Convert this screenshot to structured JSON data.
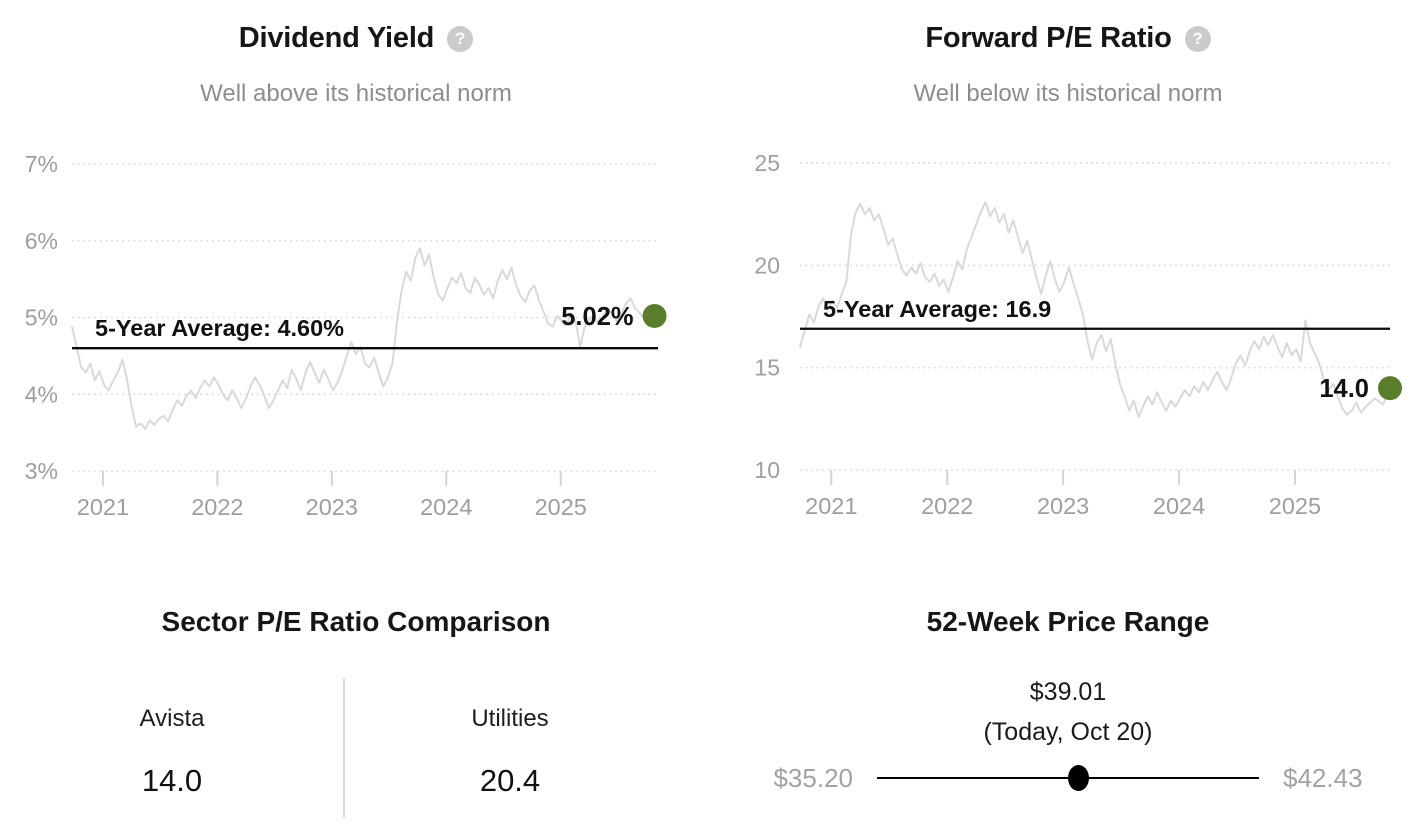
{
  "colors": {
    "title_text": "#161616",
    "subtitle_text": "#8d8d8d",
    "axis_label": "#9e9e9e",
    "series_line": "#d9d9d9",
    "gridline": "#d6d6d6",
    "tick_mark": "#d4d4d4",
    "average_line": "#0a0a0a",
    "current_dot_green": "#5a7d2c",
    "range_label_gray": "#a2a2a2",
    "divider_gray": "#d9d9d9",
    "help_icon_bg": "#cbcbcb",
    "slider_black": "#000000"
  },
  "icons": {
    "help_glyph": "?"
  },
  "chart_data": [
    {
      "type": "line",
      "title": "Dividend Yield",
      "subtitle": "Well above its historical norm",
      "help_icon": "question-mark-icon",
      "xlabel": "",
      "ylabel": "Dividend Yield (%)",
      "xlim": [
        2020.73,
        2025.85
      ],
      "ylim": [
        3,
        7
      ],
      "grid": "dotted-horizontal",
      "legend": "none",
      "y_ticks": [
        {
          "value": 7,
          "label": "7%"
        },
        {
          "value": 6,
          "label": "6%"
        },
        {
          "value": 5,
          "label": "5%"
        },
        {
          "value": 4,
          "label": "4%"
        },
        {
          "value": 3,
          "label": "3%"
        }
      ],
      "x_ticks": [
        {
          "value": 2021,
          "label": "2021"
        },
        {
          "value": 2022,
          "label": "2022"
        },
        {
          "value": 2023,
          "label": "2023"
        },
        {
          "value": 2024,
          "label": "2024"
        },
        {
          "value": 2025,
          "label": "2025"
        }
      ],
      "average": {
        "value": 4.6,
        "label": "5-Year Average: 4.60%"
      },
      "current": {
        "value": 5.02,
        "label": "5.02%"
      },
      "series": [
        [
          2020.73,
          4.88
        ],
        [
          2020.77,
          4.62
        ],
        [
          2020.81,
          4.35
        ],
        [
          2020.85,
          4.28
        ],
        [
          2020.89,
          4.4
        ],
        [
          2020.93,
          4.18
        ],
        [
          2020.97,
          4.3
        ],
        [
          2021.01,
          4.12
        ],
        [
          2021.05,
          4.05
        ],
        [
          2021.09,
          4.18
        ],
        [
          2021.13,
          4.28
        ],
        [
          2021.17,
          4.45
        ],
        [
          2021.21,
          4.2
        ],
        [
          2021.25,
          3.85
        ],
        [
          2021.29,
          3.58
        ],
        [
          2021.33,
          3.62
        ],
        [
          2021.37,
          3.55
        ],
        [
          2021.41,
          3.66
        ],
        [
          2021.45,
          3.6
        ],
        [
          2021.49,
          3.68
        ],
        [
          2021.53,
          3.72
        ],
        [
          2021.57,
          3.65
        ],
        [
          2021.61,
          3.8
        ],
        [
          2021.65,
          3.92
        ],
        [
          2021.69,
          3.85
        ],
        [
          2021.73,
          3.98
        ],
        [
          2021.77,
          4.05
        ],
        [
          2021.81,
          3.95
        ],
        [
          2021.85,
          4.08
        ],
        [
          2021.89,
          4.18
        ],
        [
          2021.93,
          4.1
        ],
        [
          2021.97,
          4.22
        ],
        [
          2022.01,
          4.12
        ],
        [
          2022.05,
          4.0
        ],
        [
          2022.09,
          3.92
        ],
        [
          2022.13,
          4.05
        ],
        [
          2022.17,
          3.95
        ],
        [
          2022.21,
          3.82
        ],
        [
          2022.25,
          3.95
        ],
        [
          2022.29,
          4.1
        ],
        [
          2022.33,
          4.22
        ],
        [
          2022.37,
          4.12
        ],
        [
          2022.41,
          3.98
        ],
        [
          2022.45,
          3.82
        ],
        [
          2022.49,
          3.92
        ],
        [
          2022.53,
          4.05
        ],
        [
          2022.57,
          4.18
        ],
        [
          2022.61,
          4.08
        ],
        [
          2022.65,
          4.32
        ],
        [
          2022.69,
          4.2
        ],
        [
          2022.73,
          4.05
        ],
        [
          2022.77,
          4.28
        ],
        [
          2022.81,
          4.42
        ],
        [
          2022.85,
          4.28
        ],
        [
          2022.89,
          4.15
        ],
        [
          2022.93,
          4.32
        ],
        [
          2022.97,
          4.2
        ],
        [
          2023.01,
          4.05
        ],
        [
          2023.05,
          4.15
        ],
        [
          2023.09,
          4.3
        ],
        [
          2023.13,
          4.5
        ],
        [
          2023.17,
          4.68
        ],
        [
          2023.21,
          4.52
        ],
        [
          2023.25,
          4.62
        ],
        [
          2023.29,
          4.4
        ],
        [
          2023.33,
          4.35
        ],
        [
          2023.37,
          4.48
        ],
        [
          2023.41,
          4.28
        ],
        [
          2023.45,
          4.1
        ],
        [
          2023.49,
          4.22
        ],
        [
          2023.53,
          4.4
        ],
        [
          2023.57,
          4.95
        ],
        [
          2023.61,
          5.35
        ],
        [
          2023.65,
          5.6
        ],
        [
          2023.69,
          5.48
        ],
        [
          2023.73,
          5.78
        ],
        [
          2023.77,
          5.9
        ],
        [
          2023.81,
          5.68
        ],
        [
          2023.85,
          5.82
        ],
        [
          2023.89,
          5.52
        ],
        [
          2023.93,
          5.3
        ],
        [
          2023.97,
          5.22
        ],
        [
          2024.01,
          5.38
        ],
        [
          2024.05,
          5.52
        ],
        [
          2024.09,
          5.45
        ],
        [
          2024.13,
          5.58
        ],
        [
          2024.17,
          5.38
        ],
        [
          2024.21,
          5.32
        ],
        [
          2024.25,
          5.52
        ],
        [
          2024.29,
          5.42
        ],
        [
          2024.33,
          5.3
        ],
        [
          2024.37,
          5.38
        ],
        [
          2024.41,
          5.25
        ],
        [
          2024.45,
          5.48
        ],
        [
          2024.49,
          5.62
        ],
        [
          2024.53,
          5.5
        ],
        [
          2024.57,
          5.65
        ],
        [
          2024.61,
          5.42
        ],
        [
          2024.65,
          5.28
        ],
        [
          2024.69,
          5.2
        ],
        [
          2024.73,
          5.35
        ],
        [
          2024.77,
          5.42
        ],
        [
          2024.81,
          5.22
        ],
        [
          2024.85,
          5.08
        ],
        [
          2024.89,
          4.92
        ],
        [
          2024.93,
          4.88
        ],
        [
          2024.97,
          5.02
        ],
        [
          2025.01,
          4.95
        ],
        [
          2025.05,
          4.9
        ],
        [
          2025.09,
          5.05
        ],
        [
          2025.13,
          4.95
        ],
        [
          2025.17,
          4.62
        ],
        [
          2025.21,
          4.88
        ],
        [
          2025.25,
          4.98
        ],
        [
          2025.29,
          5.02
        ],
        [
          2025.33,
          4.92
        ],
        [
          2025.37,
          5.02
        ],
        [
          2025.41,
          5.12
        ],
        [
          2025.45,
          5.05
        ],
        [
          2025.49,
          4.95
        ],
        [
          2025.53,
          5.05
        ],
        [
          2025.57,
          5.18
        ],
        [
          2025.61,
          5.25
        ],
        [
          2025.65,
          5.12
        ],
        [
          2025.69,
          5.06
        ],
        [
          2025.73,
          4.98
        ],
        [
          2025.78,
          5.1
        ],
        [
          2025.82,
          5.02
        ]
      ]
    },
    {
      "type": "line",
      "title": "Forward P/E Ratio",
      "subtitle": "Well below its historical norm",
      "help_icon": "question-mark-icon",
      "xlabel": "",
      "ylabel": "Forward P/E Ratio",
      "xlim": [
        2020.73,
        2025.82
      ],
      "ylim": [
        10,
        25
      ],
      "grid": "dotted-horizontal",
      "legend": "none",
      "y_ticks": [
        {
          "value": 25,
          "label": "25"
        },
        {
          "value": 20,
          "label": "20"
        },
        {
          "value": 15,
          "label": "15"
        },
        {
          "value": 10,
          "label": "10"
        }
      ],
      "x_ticks": [
        {
          "value": 2021,
          "label": "2021"
        },
        {
          "value": 2022,
          "label": "2022"
        },
        {
          "value": 2023,
          "label": "2023"
        },
        {
          "value": 2024,
          "label": "2024"
        },
        {
          "value": 2025,
          "label": "2025"
        }
      ],
      "average": {
        "value": 16.9,
        "label": "5-Year Average: 16.9"
      },
      "current": {
        "value": 14.0,
        "label": "14.0"
      },
      "series": [
        [
          2020.73,
          16.0
        ],
        [
          2020.77,
          16.8
        ],
        [
          2020.81,
          17.6
        ],
        [
          2020.85,
          17.2
        ],
        [
          2020.89,
          18.0
        ],
        [
          2020.93,
          18.4
        ],
        [
          2020.97,
          17.8
        ],
        [
          2021.01,
          18.3
        ],
        [
          2021.05,
          17.9
        ],
        [
          2021.09,
          18.6
        ],
        [
          2021.13,
          19.2
        ],
        [
          2021.17,
          21.5
        ],
        [
          2021.21,
          22.6
        ],
        [
          2021.25,
          23.0
        ],
        [
          2021.29,
          22.5
        ],
        [
          2021.33,
          22.8
        ],
        [
          2021.37,
          22.2
        ],
        [
          2021.41,
          22.5
        ],
        [
          2021.45,
          21.8
        ],
        [
          2021.49,
          21.0
        ],
        [
          2021.53,
          21.3
        ],
        [
          2021.57,
          20.5
        ],
        [
          2021.61,
          19.8
        ],
        [
          2021.65,
          19.5
        ],
        [
          2021.69,
          19.9
        ],
        [
          2021.73,
          19.6
        ],
        [
          2021.77,
          20.1
        ],
        [
          2021.81,
          19.4
        ],
        [
          2021.85,
          19.2
        ],
        [
          2021.89,
          19.6
        ],
        [
          2021.93,
          19.0
        ],
        [
          2021.97,
          19.3
        ],
        [
          2022.01,
          18.7
        ],
        [
          2022.05,
          19.4
        ],
        [
          2022.09,
          20.2
        ],
        [
          2022.13,
          19.8
        ],
        [
          2022.17,
          20.8
        ],
        [
          2022.21,
          21.4
        ],
        [
          2022.25,
          22.0
        ],
        [
          2022.29,
          22.6
        ],
        [
          2022.33,
          23.1
        ],
        [
          2022.37,
          22.4
        ],
        [
          2022.41,
          22.8
        ],
        [
          2022.45,
          22.1
        ],
        [
          2022.49,
          22.5
        ],
        [
          2022.53,
          21.6
        ],
        [
          2022.57,
          22.2
        ],
        [
          2022.61,
          21.4
        ],
        [
          2022.65,
          20.6
        ],
        [
          2022.69,
          21.2
        ],
        [
          2022.73,
          20.3
        ],
        [
          2022.77,
          19.4
        ],
        [
          2022.81,
          18.6
        ],
        [
          2022.85,
          19.5
        ],
        [
          2022.89,
          20.2
        ],
        [
          2022.93,
          19.3
        ],
        [
          2022.97,
          18.7
        ],
        [
          2023.01,
          19.2
        ],
        [
          2023.05,
          19.9
        ],
        [
          2023.09,
          19.1
        ],
        [
          2023.13,
          18.4
        ],
        [
          2023.17,
          17.6
        ],
        [
          2023.21,
          16.3
        ],
        [
          2023.25,
          15.4
        ],
        [
          2023.29,
          16.2
        ],
        [
          2023.33,
          16.6
        ],
        [
          2023.37,
          15.8
        ],
        [
          2023.41,
          16.4
        ],
        [
          2023.45,
          15.2
        ],
        [
          2023.49,
          14.2
        ],
        [
          2023.53,
          13.6
        ],
        [
          2023.57,
          12.9
        ],
        [
          2023.61,
          13.4
        ],
        [
          2023.65,
          12.6
        ],
        [
          2023.69,
          13.1
        ],
        [
          2023.73,
          13.6
        ],
        [
          2023.77,
          13.2
        ],
        [
          2023.81,
          13.8
        ],
        [
          2023.85,
          13.3
        ],
        [
          2023.89,
          12.9
        ],
        [
          2023.93,
          13.4
        ],
        [
          2023.97,
          13.1
        ],
        [
          2024.01,
          13.5
        ],
        [
          2024.05,
          13.9
        ],
        [
          2024.09,
          13.6
        ],
        [
          2024.13,
          14.1
        ],
        [
          2024.17,
          13.8
        ],
        [
          2024.21,
          14.3
        ],
        [
          2024.25,
          13.9
        ],
        [
          2024.29,
          14.4
        ],
        [
          2024.33,
          14.8
        ],
        [
          2024.37,
          14.3
        ],
        [
          2024.41,
          13.9
        ],
        [
          2024.45,
          14.5
        ],
        [
          2024.49,
          15.2
        ],
        [
          2024.53,
          15.6
        ],
        [
          2024.57,
          15.1
        ],
        [
          2024.61,
          15.8
        ],
        [
          2024.65,
          16.3
        ],
        [
          2024.69,
          15.9
        ],
        [
          2024.73,
          16.5
        ],
        [
          2024.77,
          16.1
        ],
        [
          2024.81,
          16.6
        ],
        [
          2024.85,
          16.0
        ],
        [
          2024.89,
          15.5
        ],
        [
          2024.93,
          16.2
        ],
        [
          2024.97,
          15.6
        ],
        [
          2025.01,
          15.9
        ],
        [
          2025.05,
          15.3
        ],
        [
          2025.09,
          17.3
        ],
        [
          2025.13,
          16.2
        ],
        [
          2025.17,
          15.7
        ],
        [
          2025.21,
          15.2
        ],
        [
          2025.25,
          14.4
        ],
        [
          2025.29,
          13.9
        ],
        [
          2025.33,
          14.2
        ],
        [
          2025.37,
          13.6
        ],
        [
          2025.41,
          13.0
        ],
        [
          2025.45,
          12.7
        ],
        [
          2025.49,
          12.9
        ],
        [
          2025.53,
          13.3
        ],
        [
          2025.57,
          12.8
        ],
        [
          2025.61,
          13.1
        ],
        [
          2025.69,
          13.5
        ],
        [
          2025.76,
          13.2
        ],
        [
          2025.82,
          14.0
        ]
      ]
    },
    {
      "type": "table",
      "title": "Sector P/E Ratio Comparison",
      "columns": [
        {
          "label": "Avista",
          "value": "14.0"
        },
        {
          "label": "Utilities",
          "value": "20.4"
        }
      ]
    },
    {
      "type": "range",
      "title": "52-Week Price Range",
      "min": 35.2,
      "max": 42.43,
      "current": 39.01,
      "min_label": "$35.20",
      "max_label": "$42.43",
      "current_price_label": "$39.01",
      "current_date_label": "(Today, Oct 20)"
    }
  ]
}
